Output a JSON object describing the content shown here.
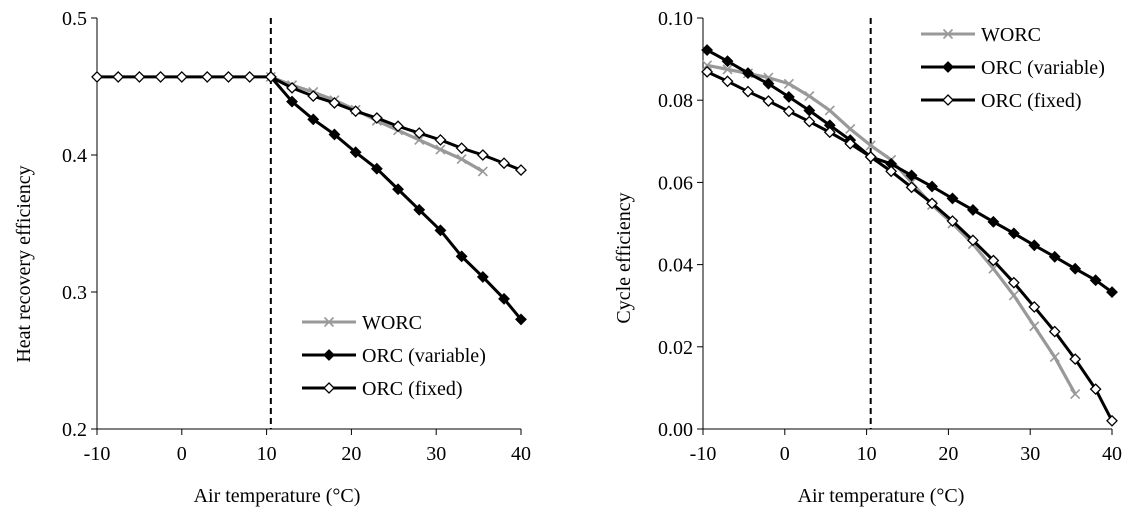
{
  "chart_data": [
    {
      "type": "line",
      "xlabel": "Air temperature (°C)",
      "ylabel": "Heat recovery efficiency",
      "xlim": [
        -10,
        40
      ],
      "ylim": [
        0.2,
        0.5
      ],
      "xticks": [
        "-10",
        "0",
        "10",
        "20",
        "30",
        "40"
      ],
      "yticks": [
        "0.2",
        "0.3",
        "0.4",
        "0.5"
      ],
      "vline_x": 10.5,
      "legend_position": "bottom-right",
      "grid": false,
      "series": [
        {
          "name": "WORC",
          "color": "#999999",
          "marker": "x",
          "points": [
            [
              10.5,
              0.457
            ],
            [
              13,
              0.451
            ],
            [
              15.5,
              0.446
            ],
            [
              18,
              0.44
            ],
            [
              20.5,
              0.433
            ],
            [
              23,
              0.425
            ],
            [
              25.5,
              0.418
            ],
            [
              28,
              0.411
            ],
            [
              30.5,
              0.404
            ],
            [
              33,
              0.397
            ],
            [
              35.5,
              0.388
            ]
          ]
        },
        {
          "name": "ORC (variable)",
          "color": "#000000",
          "marker": "diamond-filled",
          "points": [
            [
              10.5,
              0.457
            ],
            [
              13,
              0.439
            ],
            [
              15.5,
              0.426
            ],
            [
              18,
              0.415
            ],
            [
              20.5,
              0.402
            ],
            [
              23,
              0.39
            ],
            [
              25.5,
              0.375
            ],
            [
              28,
              0.36
            ],
            [
              30.5,
              0.345
            ],
            [
              33,
              0.326
            ],
            [
              35.5,
              0.311
            ],
            [
              38,
              0.295
            ],
            [
              40,
              0.28
            ]
          ]
        },
        {
          "name": "ORC (fixed)",
          "color": "#000000",
          "marker": "diamond-open",
          "points": [
            [
              -10,
              0.457
            ],
            [
              -7.5,
              0.457
            ],
            [
              -5,
              0.457
            ],
            [
              -2.5,
              0.457
            ],
            [
              0,
              0.457
            ],
            [
              3,
              0.457
            ],
            [
              5.5,
              0.457
            ],
            [
              8,
              0.457
            ],
            [
              10.5,
              0.457
            ],
            [
              13,
              0.449
            ],
            [
              15.5,
              0.443
            ],
            [
              18,
              0.438
            ],
            [
              20.5,
              0.432
            ],
            [
              23,
              0.427
            ],
            [
              25.5,
              0.421
            ],
            [
              28,
              0.416
            ],
            [
              30.5,
              0.411
            ],
            [
              33,
              0.405
            ],
            [
              35.5,
              0.4
            ],
            [
              38,
              0.394
            ],
            [
              40,
              0.389
            ]
          ]
        }
      ]
    },
    {
      "type": "line",
      "xlabel": "Air temperature (°C)",
      "ylabel": "Cycle efficiency",
      "xlim": [
        -10,
        40
      ],
      "ylim": [
        0,
        0.1
      ],
      "xticks": [
        "-10",
        "0",
        "10",
        "20",
        "30",
        "40"
      ],
      "yticks": [
        "0.00",
        "0.02",
        "0.04",
        "0.06",
        "0.08",
        "0.10"
      ],
      "vline_x": 10.5,
      "legend_position": "top-right",
      "grid": false,
      "series": [
        {
          "name": "WORC",
          "color": "#999999",
          "marker": "x",
          "points": [
            [
              -9.5,
              0.0885
            ],
            [
              -7,
              0.0875
            ],
            [
              -4.5,
              0.0865
            ],
            [
              -2,
              0.0855
            ],
            [
              0.5,
              0.084
            ],
            [
              3,
              0.081
            ],
            [
              5.5,
              0.0775
            ],
            [
              8,
              0.073
            ],
            [
              10.5,
              0.069
            ],
            [
              13,
              0.0655
            ],
            [
              15.5,
              0.06
            ],
            [
              18,
              0.0545
            ],
            [
              20.5,
              0.05
            ],
            [
              23,
              0.045
            ],
            [
              25.5,
              0.039
            ],
            [
              28,
              0.0325
            ],
            [
              30.5,
              0.025
            ],
            [
              33,
              0.0175
            ],
            [
              35.5,
              0.0085
            ]
          ]
        },
        {
          "name": "ORC (variable)",
          "color": "#000000",
          "marker": "diamond-filled",
          "points": [
            [
              -9.5,
              0.0922
            ],
            [
              -7,
              0.0895
            ],
            [
              -4.5,
              0.0866
            ],
            [
              -2,
              0.084
            ],
            [
              0.5,
              0.0808
            ],
            [
              3,
              0.0775
            ],
            [
              5.5,
              0.0739
            ],
            [
              8,
              0.0703
            ],
            [
              10.5,
              0.0662
            ],
            [
              13,
              0.0645
            ],
            [
              15.5,
              0.0617
            ],
            [
              18,
              0.059
            ],
            [
              20.5,
              0.0561
            ],
            [
              23,
              0.0533
            ],
            [
              25.5,
              0.0504
            ],
            [
              28,
              0.0476
            ],
            [
              30.5,
              0.0447
            ],
            [
              33,
              0.0419
            ],
            [
              35.5,
              0.039
            ],
            [
              38,
              0.0362
            ],
            [
              40,
              0.0333
            ]
          ]
        },
        {
          "name": "ORC (fixed)",
          "color": "#000000",
          "marker": "diamond-open",
          "points": [
            [
              -9.5,
              0.0869
            ],
            [
              -7,
              0.0846
            ],
            [
              -4.5,
              0.0821
            ],
            [
              -2,
              0.0798
            ],
            [
              0.5,
              0.0773
            ],
            [
              3,
              0.0748
            ],
            [
              5.5,
              0.0722
            ],
            [
              8,
              0.0694
            ],
            [
              10.5,
              0.0662
            ],
            [
              13,
              0.0627
            ],
            [
              15.5,
              0.0588
            ],
            [
              18,
              0.0549
            ],
            [
              20.5,
              0.0506
            ],
            [
              23,
              0.0459
            ],
            [
              25.5,
              0.041
            ],
            [
              28,
              0.0356
            ],
            [
              30.5,
              0.0297
            ],
            [
              33,
              0.0237
            ],
            [
              35.5,
              0.017
            ],
            [
              38,
              0.0097
            ],
            [
              40,
              0.002
            ]
          ]
        }
      ]
    }
  ]
}
